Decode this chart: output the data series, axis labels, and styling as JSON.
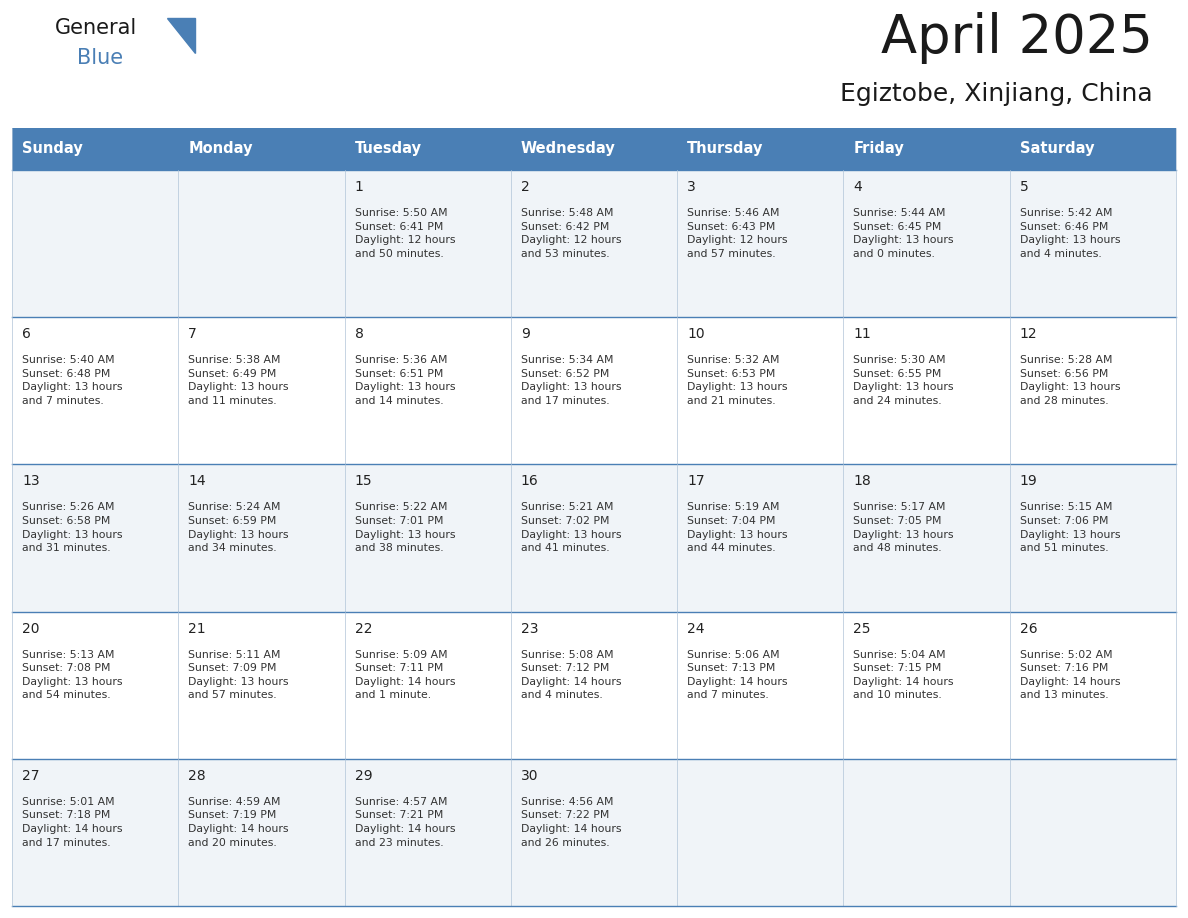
{
  "title": "April 2025",
  "subtitle": "Egiztobe, Xinjiang, China",
  "days_of_week": [
    "Sunday",
    "Monday",
    "Tuesday",
    "Wednesday",
    "Thursday",
    "Friday",
    "Saturday"
  ],
  "header_bg": "#4a7fb5",
  "header_text": "#FFFFFF",
  "row_bg_light": "#F0F4F8",
  "row_bg_white": "#FFFFFF",
  "border_color": "#4a7fb5",
  "cell_border_color": "#b0c4d8",
  "day_num_color": "#222222",
  "info_color": "#333333",
  "title_color": "#1a1a1a",
  "subtitle_color": "#1a1a1a",
  "logo_color_general": "#1a1a1a",
  "logo_color_blue": "#4a7fb5",
  "calendar": [
    [
      {
        "day": "",
        "info": ""
      },
      {
        "day": "",
        "info": ""
      },
      {
        "day": "1",
        "info": "Sunrise: 5:50 AM\nSunset: 6:41 PM\nDaylight: 12 hours\nand 50 minutes."
      },
      {
        "day": "2",
        "info": "Sunrise: 5:48 AM\nSunset: 6:42 PM\nDaylight: 12 hours\nand 53 minutes."
      },
      {
        "day": "3",
        "info": "Sunrise: 5:46 AM\nSunset: 6:43 PM\nDaylight: 12 hours\nand 57 minutes."
      },
      {
        "day": "4",
        "info": "Sunrise: 5:44 AM\nSunset: 6:45 PM\nDaylight: 13 hours\nand 0 minutes."
      },
      {
        "day": "5",
        "info": "Sunrise: 5:42 AM\nSunset: 6:46 PM\nDaylight: 13 hours\nand 4 minutes."
      }
    ],
    [
      {
        "day": "6",
        "info": "Sunrise: 5:40 AM\nSunset: 6:48 PM\nDaylight: 13 hours\nand 7 minutes."
      },
      {
        "day": "7",
        "info": "Sunrise: 5:38 AM\nSunset: 6:49 PM\nDaylight: 13 hours\nand 11 minutes."
      },
      {
        "day": "8",
        "info": "Sunrise: 5:36 AM\nSunset: 6:51 PM\nDaylight: 13 hours\nand 14 minutes."
      },
      {
        "day": "9",
        "info": "Sunrise: 5:34 AM\nSunset: 6:52 PM\nDaylight: 13 hours\nand 17 minutes."
      },
      {
        "day": "10",
        "info": "Sunrise: 5:32 AM\nSunset: 6:53 PM\nDaylight: 13 hours\nand 21 minutes."
      },
      {
        "day": "11",
        "info": "Sunrise: 5:30 AM\nSunset: 6:55 PM\nDaylight: 13 hours\nand 24 minutes."
      },
      {
        "day": "12",
        "info": "Sunrise: 5:28 AM\nSunset: 6:56 PM\nDaylight: 13 hours\nand 28 minutes."
      }
    ],
    [
      {
        "day": "13",
        "info": "Sunrise: 5:26 AM\nSunset: 6:58 PM\nDaylight: 13 hours\nand 31 minutes."
      },
      {
        "day": "14",
        "info": "Sunrise: 5:24 AM\nSunset: 6:59 PM\nDaylight: 13 hours\nand 34 minutes."
      },
      {
        "day": "15",
        "info": "Sunrise: 5:22 AM\nSunset: 7:01 PM\nDaylight: 13 hours\nand 38 minutes."
      },
      {
        "day": "16",
        "info": "Sunrise: 5:21 AM\nSunset: 7:02 PM\nDaylight: 13 hours\nand 41 minutes."
      },
      {
        "day": "17",
        "info": "Sunrise: 5:19 AM\nSunset: 7:04 PM\nDaylight: 13 hours\nand 44 minutes."
      },
      {
        "day": "18",
        "info": "Sunrise: 5:17 AM\nSunset: 7:05 PM\nDaylight: 13 hours\nand 48 minutes."
      },
      {
        "day": "19",
        "info": "Sunrise: 5:15 AM\nSunset: 7:06 PM\nDaylight: 13 hours\nand 51 minutes."
      }
    ],
    [
      {
        "day": "20",
        "info": "Sunrise: 5:13 AM\nSunset: 7:08 PM\nDaylight: 13 hours\nand 54 minutes."
      },
      {
        "day": "21",
        "info": "Sunrise: 5:11 AM\nSunset: 7:09 PM\nDaylight: 13 hours\nand 57 minutes."
      },
      {
        "day": "22",
        "info": "Sunrise: 5:09 AM\nSunset: 7:11 PM\nDaylight: 14 hours\nand 1 minute."
      },
      {
        "day": "23",
        "info": "Sunrise: 5:08 AM\nSunset: 7:12 PM\nDaylight: 14 hours\nand 4 minutes."
      },
      {
        "day": "24",
        "info": "Sunrise: 5:06 AM\nSunset: 7:13 PM\nDaylight: 14 hours\nand 7 minutes."
      },
      {
        "day": "25",
        "info": "Sunrise: 5:04 AM\nSunset: 7:15 PM\nDaylight: 14 hours\nand 10 minutes."
      },
      {
        "day": "26",
        "info": "Sunrise: 5:02 AM\nSunset: 7:16 PM\nDaylight: 14 hours\nand 13 minutes."
      }
    ],
    [
      {
        "day": "27",
        "info": "Sunrise: 5:01 AM\nSunset: 7:18 PM\nDaylight: 14 hours\nand 17 minutes."
      },
      {
        "day": "28",
        "info": "Sunrise: 4:59 AM\nSunset: 7:19 PM\nDaylight: 14 hours\nand 20 minutes."
      },
      {
        "day": "29",
        "info": "Sunrise: 4:57 AM\nSunset: 7:21 PM\nDaylight: 14 hours\nand 23 minutes."
      },
      {
        "day": "30",
        "info": "Sunrise: 4:56 AM\nSunset: 7:22 PM\nDaylight: 14 hours\nand 26 minutes."
      },
      {
        "day": "",
        "info": ""
      },
      {
        "day": "",
        "info": ""
      },
      {
        "day": "",
        "info": ""
      }
    ]
  ]
}
